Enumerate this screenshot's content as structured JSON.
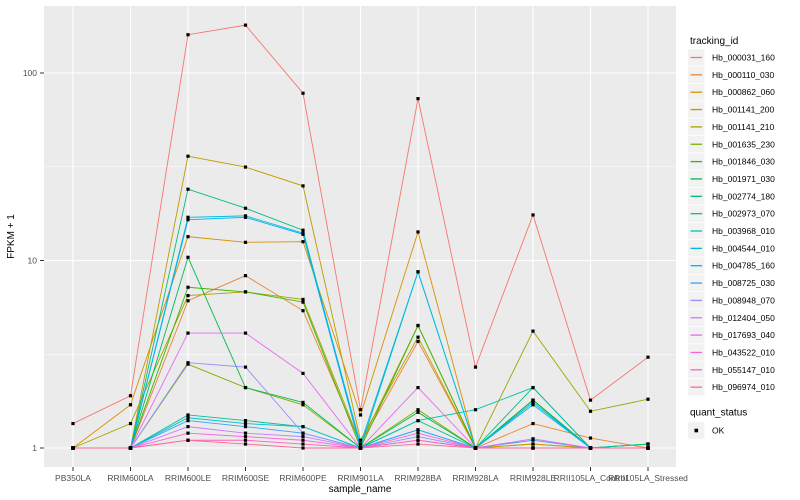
{
  "chart_data": {
    "type": "line",
    "title": "",
    "xlabel": "sample_name",
    "ylabel": "FPKM + 1",
    "yscale": "log10",
    "y_ticks": [
      1,
      10,
      100
    ],
    "y_minor": [
      3.162,
      31.62
    ],
    "ylim": [
      0.87,
      230
    ],
    "legend_title": "tracking_id",
    "point_legend": {
      "title": "quant_status",
      "label": "OK"
    },
    "categories": [
      "PB350LA",
      "RRIM600LA",
      "RRIM600LE",
      "RRIM600SE",
      "RRIM600PE",
      "RRIM901LA",
      "RRIM928BA",
      "RRIM928LA",
      "RRIM928LE",
      "RRII105LA_Control",
      "RRII105LA_Stressed"
    ],
    "series": [
      {
        "name": "Hb_000031_160",
        "color": "#F8766D",
        "values": [
          1.35,
          1.9,
          160,
          180,
          78,
          1.6,
          73,
          2.7,
          17.5,
          1.8,
          3.05
        ]
      },
      {
        "name": "Hb_000110_030",
        "color": "#EA8331",
        "values": [
          1,
          1,
          6.1,
          8.3,
          5.4,
          1.05,
          3.7,
          1,
          1.35,
          1.13,
          1
        ]
      },
      {
        "name": "Hb_000862_060",
        "color": "#D89000",
        "values": [
          1,
          1.7,
          13.4,
          12.5,
          12.6,
          1.5,
          14.2,
          1,
          1.05,
          1,
          1
        ]
      },
      {
        "name": "Hb_001141_200",
        "color": "#C09B00",
        "values": [
          1,
          1,
          36,
          31.5,
          25,
          1.1,
          3.9,
          1,
          1.05,
          1,
          1
        ]
      },
      {
        "name": "Hb_001141_210",
        "color": "#A3A500",
        "values": [
          1,
          1.35,
          6.5,
          6.8,
          6.2,
          1.05,
          4.5,
          1,
          4.2,
          1.57,
          1.82
        ]
      },
      {
        "name": "Hb_001635_230",
        "color": "#7CAE00",
        "values": [
          1,
          1,
          2.8,
          2.1,
          1.7,
          1,
          1.6,
          1,
          1.8,
          1,
          1.05
        ]
      },
      {
        "name": "Hb_001846_030",
        "color": "#39B600",
        "values": [
          1,
          1,
          7.2,
          6.8,
          6.0,
          1,
          4.5,
          1,
          1.8,
          1,
          1
        ]
      },
      {
        "name": "Hb_001971_030",
        "color": "#00BB4E",
        "values": [
          1,
          1,
          10.4,
          2.1,
          1.75,
          1,
          1.55,
          1,
          1.8,
          1,
          1
        ]
      },
      {
        "name": "Hb_002774_180",
        "color": "#00BF7D",
        "values": [
          1,
          1,
          24,
          19,
          14.5,
          1,
          1.4,
          1,
          2.1,
          1,
          1.05
        ]
      },
      {
        "name": "Hb_002973_070",
        "color": "#00C1A3",
        "values": [
          1,
          1,
          1.5,
          1.4,
          1.3,
          1,
          1.4,
          1.6,
          2.1,
          1,
          1.05
        ]
      },
      {
        "name": "Hb_003968_010",
        "color": "#00BFC4",
        "values": [
          1,
          1,
          1.45,
          1.35,
          1.3,
          1,
          8.7,
          1,
          1.75,
          1,
          1
        ]
      },
      {
        "name": "Hb_004544_010",
        "color": "#00BAE0",
        "values": [
          1,
          1,
          17,
          17.3,
          14,
          1.05,
          8.7,
          1,
          1.75,
          1,
          1
        ]
      },
      {
        "name": "Hb_004785_160",
        "color": "#00B0F6",
        "values": [
          1,
          1,
          16.5,
          17,
          13.8,
          1,
          1.25,
          1,
          1.7,
          1,
          1
        ]
      },
      {
        "name": "Hb_008725_030",
        "color": "#35A2FF",
        "values": [
          1,
          1,
          1.4,
          1.3,
          1.2,
          1,
          1.25,
          1,
          1.1,
          1,
          1
        ]
      },
      {
        "name": "Hb_008948_070",
        "color": "#9590FF",
        "values": [
          1,
          1,
          2.85,
          2.7,
          1.2,
          1,
          1.15,
          1,
          1,
          1,
          1
        ]
      },
      {
        "name": "Hb_012404_050",
        "color": "#C77CFF",
        "values": [
          1,
          1,
          1.3,
          1.2,
          1.15,
          1,
          1.1,
          1,
          1,
          1,
          1
        ]
      },
      {
        "name": "Hb_017693_040",
        "color": "#E76BF3",
        "values": [
          1,
          1,
          4.1,
          4.1,
          2.5,
          1,
          2.1,
          1,
          1.12,
          1,
          1
        ]
      },
      {
        "name": "Hb_043522_010",
        "color": "#FA62DB",
        "values": [
          1,
          1,
          1.2,
          1.15,
          1.1,
          1,
          1.2,
          1,
          1,
          1,
          1
        ]
      },
      {
        "name": "Hb_055147_010",
        "color": "#FF62BC",
        "values": [
          1,
          1,
          1.1,
          1.1,
          1.05,
          1,
          1.1,
          1,
          1,
          1,
          1
        ]
      },
      {
        "name": "Hb_096974_010",
        "color": "#FF6A98",
        "values": [
          1,
          1,
          1.1,
          1.05,
          1,
          1,
          1.05,
          1,
          1,
          1,
          1
        ]
      }
    ]
  },
  "style": {
    "panel_bg": "#EBEBEB",
    "grid_color": "#FFFFFF",
    "tick_color": "#333333",
    "tick_text_color": "#4D4D4D",
    "axis_title_color": "#000000",
    "legend_key_bg": "#F2F2F2",
    "point_color": "#000000"
  }
}
